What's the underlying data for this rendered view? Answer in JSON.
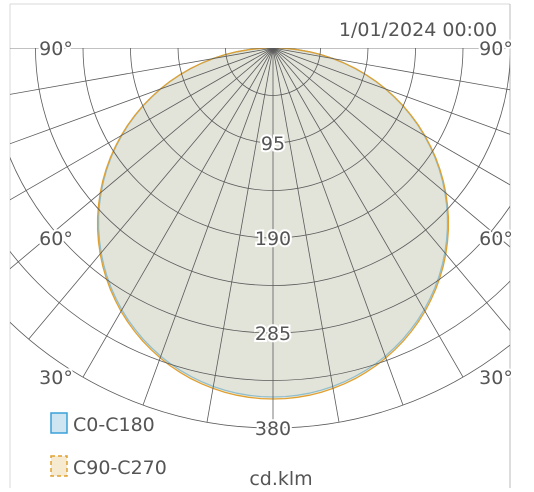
{
  "chart_data": {
    "type": "polar",
    "timestamp": "1/01/2024 00:00",
    "unit_label": "cd.klm",
    "radial_ticks": [
      95,
      190,
      285,
      380
    ],
    "radial_max": 380,
    "angle_labels": [
      {
        "text": "90°",
        "side": "left",
        "angle": 90
      },
      {
        "text": "60°",
        "side": "left",
        "angle": 60
      },
      {
        "text": "30°",
        "side": "left",
        "angle": 30
      },
      {
        "text": "90°",
        "side": "right",
        "angle": 90
      },
      {
        "text": "60°",
        "side": "right",
        "angle": 60
      },
      {
        "text": "30°",
        "side": "right",
        "angle": 30
      }
    ],
    "legend_position": "bottom-left",
    "series": [
      {
        "name": "C0-C180",
        "color": "#3aa0d8",
        "fill": "#d0e7f0",
        "peak": 349,
        "dash": false
      },
      {
        "name": "C90-C270",
        "color": "#e0a030",
        "fill": "#e8dcc0",
        "peak": 351,
        "dash": true
      }
    ],
    "grid_color": "#5a5a5a"
  }
}
